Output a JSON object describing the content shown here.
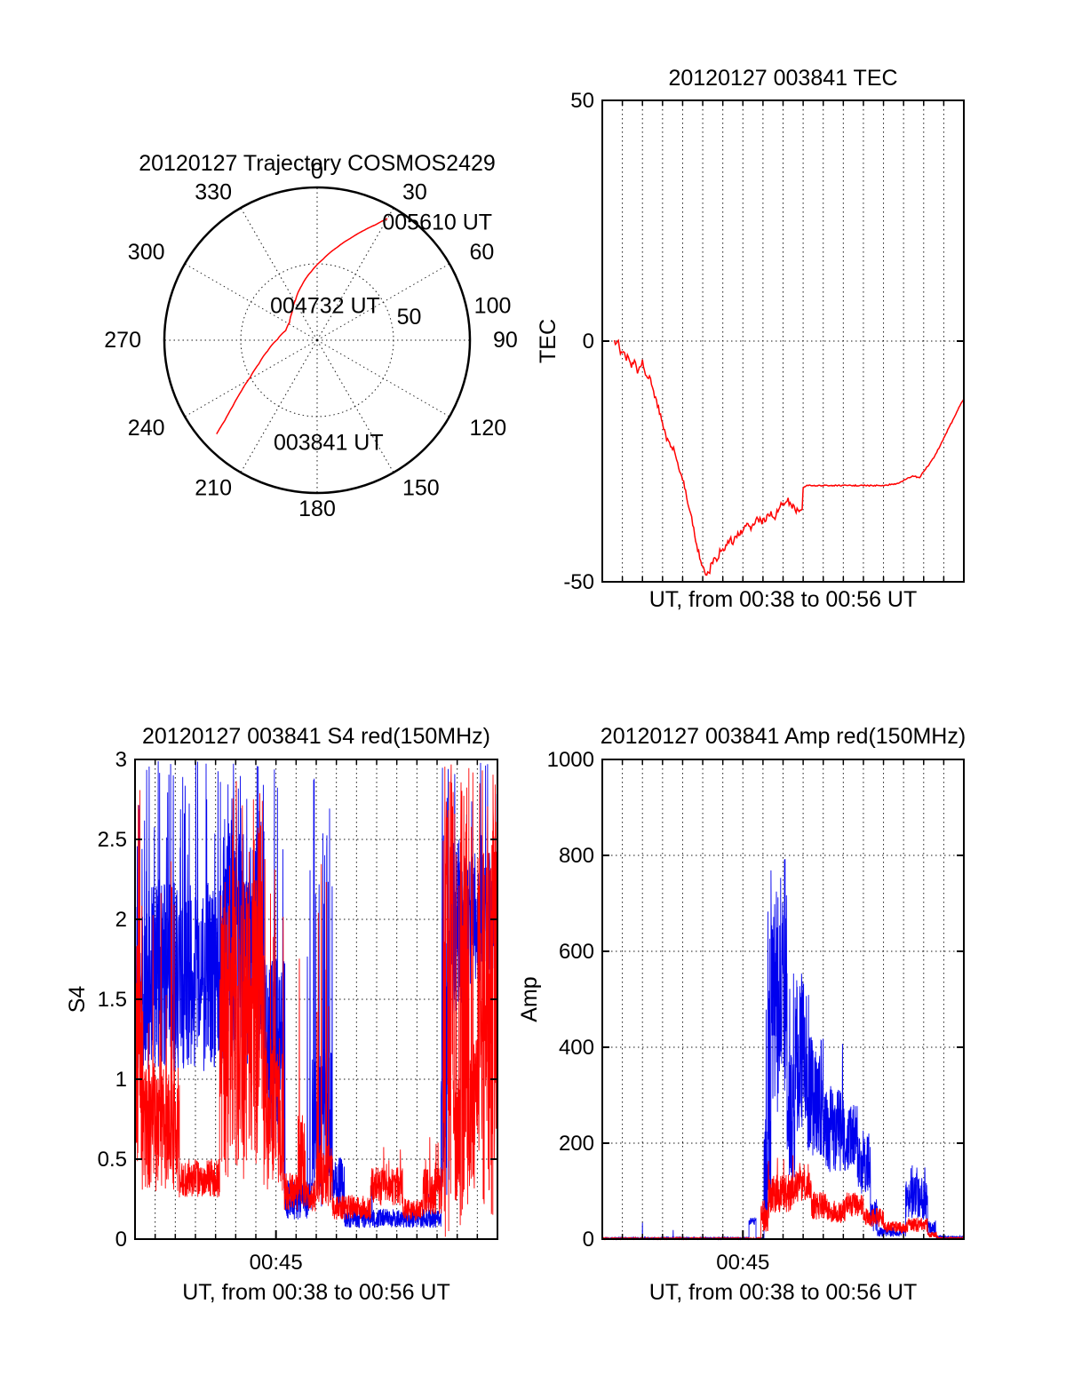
{
  "figure": {
    "background": "#ffffff",
    "text_color": "#000000"
  },
  "chart_data": [
    {
      "id": "trajectory",
      "type": "line",
      "coordinate_system": "polar",
      "title": "20120127 Trajectory COSMOS2429",
      "azimuth_tick_labels": [
        "0",
        "30",
        "60",
        "90",
        "120",
        "150",
        "180",
        "210",
        "240",
        "270",
        "300",
        "330"
      ],
      "radial_tick_labels": [
        {
          "label": "50",
          "azimuth_deg": 76,
          "radius_frac": 0.62
        },
        {
          "label": "100",
          "azimuth_deg": 79,
          "radius_frac": 1.17
        }
      ],
      "radial_grid_circle_frac": 0.5,
      "grid": "dotted spokes every 30 deg, dotted circle at 50, solid outer circle",
      "line_color": "#ff0000",
      "trajectory_points_az_r": [
        [
          227,
          0.9
        ],
        [
          229,
          0.8
        ],
        [
          232,
          0.7
        ],
        [
          236,
          0.6
        ],
        [
          241,
          0.5
        ],
        [
          248,
          0.41
        ],
        [
          258,
          0.33
        ],
        [
          271,
          0.26
        ],
        [
          287,
          0.215
        ],
        [
          303,
          0.215
        ],
        [
          318,
          0.245
        ],
        [
          332,
          0.3
        ],
        [
          344,
          0.37
        ],
        [
          355,
          0.45
        ],
        [
          364,
          0.53
        ],
        [
          372,
          0.62
        ],
        [
          378,
          0.7
        ],
        [
          383,
          0.78
        ],
        [
          387,
          0.85
        ],
        [
          390,
          0.92
        ]
      ],
      "annotations": [
        {
          "label": "005610 UT",
          "azimuth_deg": 29,
          "radius_frac": 0.88
        },
        {
          "label": "004732 UT",
          "azimuth_deg": 306,
          "radius_frac": 0.38
        },
        {
          "label": "003841 UT",
          "azimuth_deg": 203,
          "radius_frac": 0.73
        }
      ]
    },
    {
      "id": "tec",
      "type": "line",
      "title": "20120127 003841 TEC",
      "xlabel": "UT, from 00:38 to 00:56 UT",
      "ylabel": "TEC",
      "ylim": [
        -50,
        50
      ],
      "yticks": [
        50,
        0,
        -50
      ],
      "x_range_minutes": [
        0,
        18
      ],
      "x_start_label": "00:38",
      "x_end_label": "00:56",
      "x_grid_interval_min": 1,
      "h_gridlines_at": [
        0
      ],
      "grid": "dotted vertical line each minute, dotted horizontal at 0",
      "noise_seed": 20120127,
      "series": [
        {
          "name": "TEC",
          "color": "#ff0000",
          "jitter": {
            "until_t": 9.9,
            "amp": 1.5,
            "amp_after": 0.25
          },
          "points_t_v": [
            [
              0.6,
              0
            ],
            [
              0.7,
              -1
            ],
            [
              0.8,
              -0.5
            ],
            [
              0.9,
              -2
            ],
            [
              1.0,
              -3
            ],
            [
              1.1,
              -2
            ],
            [
              1.2,
              -4
            ],
            [
              1.3,
              -3
            ],
            [
              1.45,
              -5
            ],
            [
              1.6,
              -4
            ],
            [
              1.75,
              -6
            ],
            [
              1.9,
              -5
            ],
            [
              2.0,
              -4
            ],
            [
              2.1,
              -6
            ],
            [
              2.25,
              -7
            ],
            [
              2.4,
              -8
            ],
            [
              2.6,
              -11
            ],
            [
              2.8,
              -14
            ],
            [
              3.0,
              -17
            ],
            [
              3.2,
              -20
            ],
            [
              3.4,
              -22
            ],
            [
              3.6,
              -23
            ],
            [
              3.8,
              -26
            ],
            [
              4.0,
              -29
            ],
            [
              4.2,
              -32
            ],
            [
              4.35,
              -35
            ],
            [
              4.5,
              -38
            ],
            [
              4.65,
              -41
            ],
            [
              4.8,
              -44
            ],
            [
              5.0,
              -46.5
            ],
            [
              5.15,
              -48
            ],
            [
              5.3,
              -48.5
            ],
            [
              5.45,
              -46
            ],
            [
              5.6,
              -44.5
            ],
            [
              5.75,
              -45.5
            ],
            [
              5.9,
              -43
            ],
            [
              6.05,
              -44
            ],
            [
              6.2,
              -42
            ],
            [
              6.35,
              -41
            ],
            [
              6.5,
              -41.5
            ],
            [
              6.65,
              -40
            ],
            [
              6.8,
              -40.5
            ],
            [
              7.0,
              -39
            ],
            [
              7.2,
              -38
            ],
            [
              7.4,
              -38.5
            ],
            [
              7.6,
              -37.5
            ],
            [
              7.8,
              -37
            ],
            [
              8.0,
              -37.5
            ],
            [
              8.2,
              -36.5
            ],
            [
              8.4,
              -36
            ],
            [
              8.6,
              -36.5
            ],
            [
              8.8,
              -35
            ],
            [
              9.0,
              -33.5
            ],
            [
              9.2,
              -33
            ],
            [
              9.4,
              -34
            ],
            [
              9.6,
              -35
            ],
            [
              9.8,
              -35.5
            ],
            [
              9.95,
              -35
            ],
            [
              10.0,
              -30.5
            ],
            [
              10.2,
              -30
            ],
            [
              11.0,
              -30
            ],
            [
              12.0,
              -30
            ],
            [
              13.0,
              -30
            ],
            [
              14.0,
              -30
            ],
            [
              14.8,
              -29.5
            ],
            [
              15.2,
              -28.5
            ],
            [
              15.5,
              -28
            ],
            [
              15.8,
              -28.5
            ],
            [
              16.0,
              -27
            ],
            [
              16.3,
              -25.5
            ],
            [
              16.6,
              -23.5
            ],
            [
              16.9,
              -21
            ],
            [
              17.2,
              -18.5
            ],
            [
              17.5,
              -16
            ],
            [
              17.8,
              -13.5
            ],
            [
              18.0,
              -12
            ]
          ]
        }
      ]
    },
    {
      "id": "s4",
      "type": "line",
      "title": "20120127 003841 S4 red(150MHz)",
      "xlabel": "UT, from 00:38 to 00:56 UT",
      "ylabel": "S4",
      "ylim": [
        0,
        3
      ],
      "yticks": [
        0,
        0.5,
        1,
        1.5,
        2,
        2.5,
        3
      ],
      "xticks": [
        {
          "t_min": 7,
          "label": "00:45"
        }
      ],
      "x_range_minutes": [
        0,
        18
      ],
      "x_start_label": "00:38",
      "x_end_label": "00:56",
      "x_grid_interval_min": 1,
      "h_gridlines_at": [
        0.5,
        1,
        1.5,
        2,
        2.5
      ],
      "grid": "dotted vertical line each minute, dotted horizontal each 0.5",
      "noise_seed": 20120127,
      "sample_dt_min": 0.01,
      "series": [
        {
          "name": "blue",
          "color": "#0000ee",
          "envelope": [
            [
              0,
              0.6,
              1.6,
              0.55,
              0.1,
              2.3,
              3.0
            ],
            [
              0.6,
              4.2,
              1.65,
              0.6,
              0.07,
              2.4,
              3.0
            ],
            [
              4.2,
              6.4,
              1.8,
              0.75,
              0.1,
              2.6,
              3.0
            ],
            [
              6.4,
              7.4,
              1.2,
              0.6,
              0.05,
              2.0,
              3.0
            ],
            [
              7.4,
              8.8,
              0.25,
              0.13,
              0.015,
              1.6,
              3.0
            ],
            [
              8.8,
              9.8,
              0.7,
              0.5,
              0.12,
              2.0,
              3.0
            ],
            [
              9.8,
              10.4,
              0.35,
              0.17,
              0.0,
              0,
              0
            ],
            [
              10.4,
              15.2,
              0.13,
              0.06,
              0.004,
              0.25,
              0.45
            ],
            [
              15.2,
              15.6,
              1.1,
              0.9,
              0.1,
              2.0,
              3.0
            ],
            [
              15.6,
              16.3,
              2.0,
              0.6,
              0.08,
              2.6,
              3.0
            ],
            [
              16.3,
              18.0,
              2.0,
              0.42,
              0.06,
              2.5,
              3.0
            ]
          ]
        },
        {
          "name": "red",
          "color": "#ff0000",
          "envelope": [
            [
              0,
              0.35,
              1.2,
              0.8,
              0.15,
              2.0,
              3.0
            ],
            [
              0.35,
              2.2,
              0.7,
              0.4,
              0.05,
              1.3,
              2.9
            ],
            [
              2.2,
              4.2,
              0.38,
              0.12,
              0.01,
              0.7,
              1.0
            ],
            [
              4.2,
              6.4,
              1.3,
              0.95,
              0.12,
              2.2,
              3.0
            ],
            [
              6.4,
              7.4,
              0.8,
              0.5,
              0.06,
              1.5,
              2.4
            ],
            [
              7.4,
              8.1,
              0.3,
              0.12,
              0.0,
              0,
              0
            ],
            [
              8.1,
              8.45,
              0.5,
              0.3,
              0.08,
              1.5,
              2.25
            ],
            [
              8.45,
              9.0,
              0.27,
              0.1,
              0.0,
              0,
              0
            ],
            [
              9.0,
              9.8,
              0.4,
              0.2,
              0.08,
              1.4,
              2.35
            ],
            [
              9.8,
              11.7,
              0.2,
              0.08,
              0.005,
              0.35,
              0.5
            ],
            [
              11.7,
              13.3,
              0.33,
              0.12,
              0.02,
              0.45,
              0.58
            ],
            [
              13.3,
              14.3,
              0.18,
              0.07,
              0.0,
              0,
              0
            ],
            [
              14.3,
              15.3,
              0.3,
              0.15,
              0.03,
              0.45,
              0.65
            ],
            [
              15.3,
              15.8,
              1.5,
              1.4,
              0.6,
              0.0,
              3.0
            ],
            [
              15.8,
              16.15,
              0.6,
              0.4,
              0.12,
              2.0,
              3.0
            ],
            [
              16.15,
              16.6,
              1.5,
              1.4,
              0.55,
              0.0,
              3.0
            ],
            [
              16.6,
              17.1,
              0.8,
              0.5,
              0.1,
              2.2,
              3.0
            ],
            [
              17.1,
              18.0,
              1.5,
              1.4,
              0.6,
              0.0,
              3.0
            ]
          ]
        }
      ]
    },
    {
      "id": "amp",
      "type": "line",
      "title": "20120127 003841 Amp red(150MHz)",
      "xlabel": "UT, from 00:38 to 00:56 UT",
      "ylabel": "Amp",
      "ylim": [
        0,
        1000
      ],
      "yticks": [
        0,
        200,
        400,
        600,
        800,
        1000
      ],
      "xticks": [
        {
          "t_min": 7,
          "label": "00:45"
        }
      ],
      "x_range_minutes": [
        0,
        18
      ],
      "x_start_label": "00:38",
      "x_end_label": "00:56",
      "x_grid_interval_min": 1,
      "h_gridlines_at": [
        200,
        400,
        600,
        800
      ],
      "grid": "dotted vertical line each minute, dotted horizontal each 200",
      "noise_seed": 20120127,
      "sample_dt_min": 0.01,
      "series": [
        {
          "name": "blue",
          "color": "#0000ee",
          "envelope": [
            [
              0,
              6.3,
              2,
              2,
              0.003,
              10,
              45
            ],
            [
              6.3,
              7.3,
              2,
              2,
              0.0,
              0,
              0
            ],
            [
              7.3,
              7.65,
              38,
              8,
              0.0,
              0,
              0
            ],
            [
              7.65,
              8.05,
              2,
              2,
              0.0,
              0,
              0
            ],
            [
              8.05,
              8.4,
              150,
              120,
              0.1,
              400,
              700
            ],
            [
              8.4,
              9.2,
              480,
              230,
              0.12,
              700,
              805
            ],
            [
              9.2,
              9.6,
              250,
              150,
              0.05,
              500,
              600
            ],
            [
              9.6,
              10.1,
              380,
              170,
              0.05,
              500,
              570
            ],
            [
              10.1,
              11.0,
              300,
              130,
              0.02,
              450,
              520
            ],
            [
              11.0,
              12.0,
              230,
              90,
              0.01,
              350,
              420
            ],
            [
              12.0,
              12.7,
              210,
              70,
              0.01,
              280,
              330
            ],
            [
              12.7,
              13.35,
              160,
              70,
              0.0,
              0,
              0
            ],
            [
              13.35,
              13.7,
              50,
              35,
              0.0,
              0,
              0
            ],
            [
              13.7,
              15.1,
              15,
              10,
              0.0,
              0,
              0
            ],
            [
              15.1,
              16.2,
              85,
              45,
              0.05,
              130,
              155
            ],
            [
              16.2,
              16.6,
              25,
              15,
              0.0,
              0,
              0
            ],
            [
              16.6,
              18.0,
              4,
              3,
              0.0,
              0,
              0
            ]
          ]
        },
        {
          "name": "red",
          "color": "#ff0000",
          "envelope": [
            [
              0,
              7.9,
              1.5,
              1.5,
              0.0,
              0,
              0
            ],
            [
              7.9,
              8.3,
              50,
              35,
              0.05,
              120,
              170
            ],
            [
              8.3,
              9.6,
              95,
              40,
              0.03,
              150,
              175
            ],
            [
              9.6,
              10.4,
              110,
              35,
              0.02,
              150,
              165
            ],
            [
              10.4,
              11.2,
              70,
              30,
              0.0,
              0,
              0
            ],
            [
              11.2,
              12.1,
              58,
              25,
              0.0,
              0,
              0
            ],
            [
              12.1,
              13.0,
              72,
              25,
              0.0,
              0,
              0
            ],
            [
              13.0,
              14.0,
              45,
              20,
              0.0,
              0,
              0
            ],
            [
              14.0,
              15.2,
              25,
              12,
              0.0,
              0,
              0
            ],
            [
              15.2,
              16.2,
              30,
              15,
              0.0,
              0,
              0
            ],
            [
              16.2,
              16.7,
              9,
              6,
              0.0,
              0,
              0
            ],
            [
              16.7,
              18.0,
              2,
              2,
              0.0,
              0,
              0
            ]
          ]
        }
      ]
    }
  ]
}
